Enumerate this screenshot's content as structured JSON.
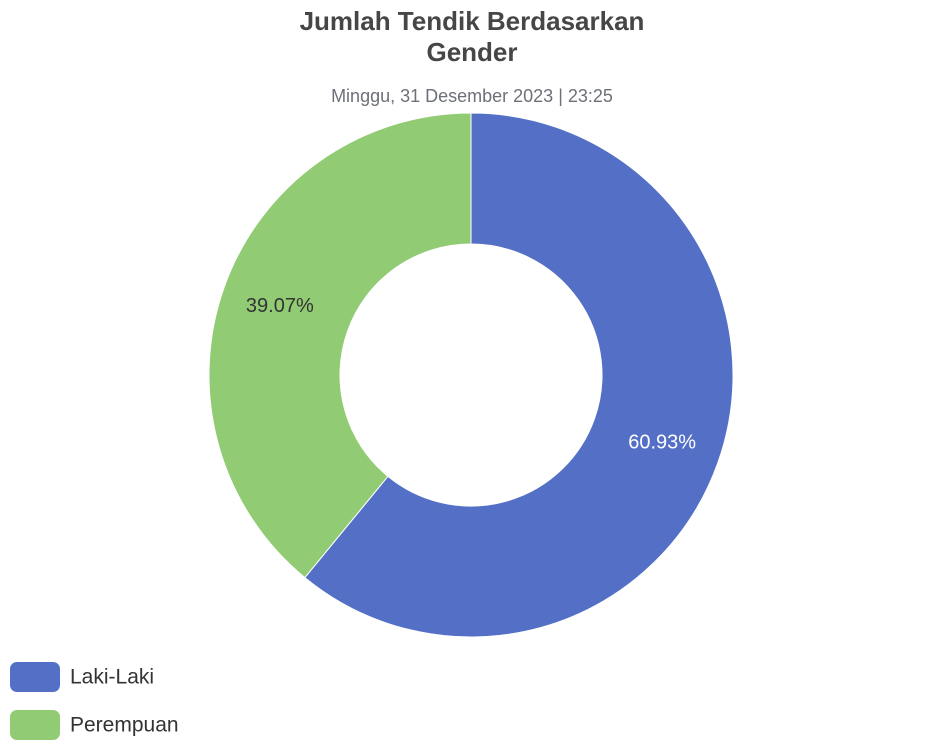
{
  "chart_data": {
    "type": "donut",
    "title": "Jumlah Tendik Berdasarkan Gender",
    "subtitle": "Minggu, 31 Desember 2023 | 23:25",
    "categories": [
      "Laki-Laki",
      "Perempuan"
    ],
    "values": [
      60.93,
      39.07
    ],
    "value_labels": [
      "60.93%",
      "39.07%"
    ],
    "colors": [
      "#5470c6",
      "#91cc75"
    ],
    "legend": "bottom-left"
  }
}
